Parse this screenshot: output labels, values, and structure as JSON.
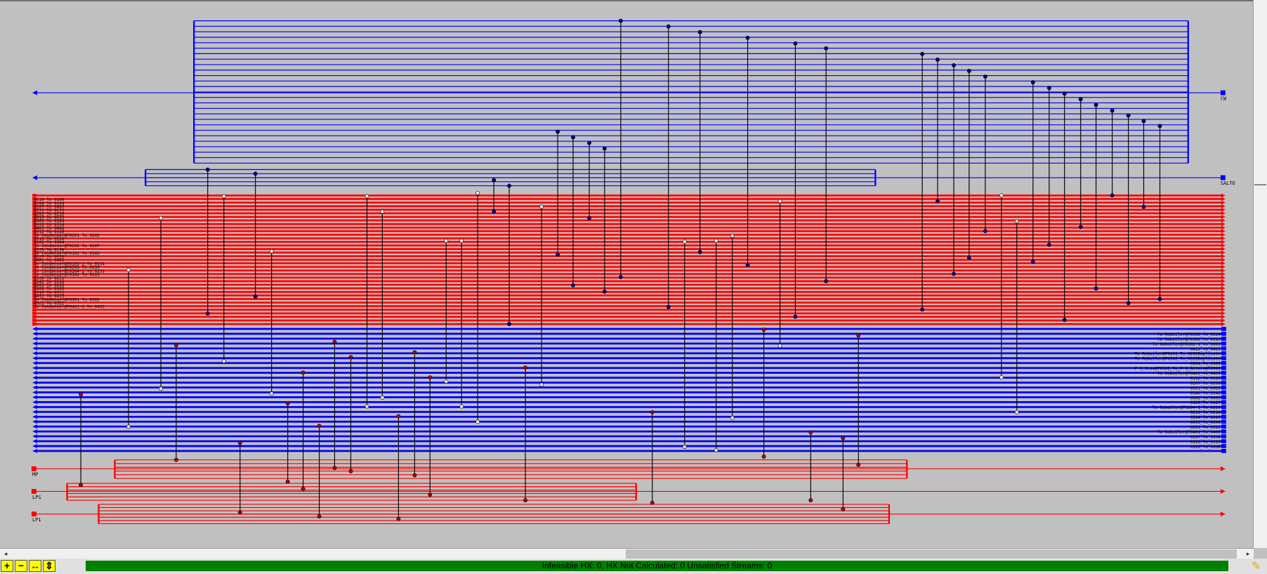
{
  "utilities": {
    "cw": {
      "name": "CW"
    },
    "salto": {
      "name": "SALTO"
    },
    "mp": {
      "name": "MP"
    },
    "lps": {
      "name": "LPS"
    },
    "lp1": {
      "name": "LP1"
    }
  },
  "hot_streams": [
    "0110_To_0100",
    "0108_To_0104",
    "0107_To_0400",
    "0131_To_0133",
    "0202_To_0210",
    "0313_To_0515",
    "0303_To_0304",
    "0333_To_0334",
    "0405_To_0408",
    "0312_To_0310",
    "To Condenser@T0201_To_0202",
    "0112_To_0510",
    "0101_To_0304",
    "To Condenser@T0202_To_0207",
    "0135_To_0136",
    "To Condenser@T0102_To_0103",
    "0227_To_0226",
    "0401_To_0402",
    "To Condenser@T0103-2_To_0134",
    "To Condenser@T0203_To_0233",
    "To Condenser@T0204-2_To_0231",
    "To Condenser@T0302_To_0331",
    "0220_To_0221",
    "0142_To_0143",
    "0201_To_0205",
    "0102_To_0103",
    "0310_To_0311",
    "0412_To_0413",
    "To Condenser@T0301_To_0302",
    "0321_To_0322",
    "To Condenser@T0401-2_To_0402"
  ],
  "cold_streams": [
    "To Reboiler@T0302_To_0324",
    "To Reboiler@T0102_To_0110",
    "To Reboiler@T0302-1_To_0303",
    "0419_To_0420",
    "To Reboiler@T0201_To_0202Duplicate",
    "To Reboiler@T0302_To_0333Duplicate",
    "0304_To_0305",
    "P-1_Scav@T0302_To_P-1_Return@T0302",
    "To Reboiler@T0402_To_0403",
    "0112_To_0113",
    "0207_To_0208",
    "0321_To_0322",
    "0140_To_0141",
    "0502_To_0503",
    "0126_To_0127",
    "To Reboiler@T0204-1_To_0229",
    "0215_To_0216",
    "0314_To_0315",
    "0505_To_0506",
    "0221_To_0222",
    "To Reboiler@T0401_To_0402",
    "0337_To_0338",
    "0115_To_0116",
    "0333_To_0336"
  ],
  "status": {
    "text": "Infeasible HX: 0, HX Not Calculated: 0     Unsatisfied Streams: 0"
  },
  "toolbar": {
    "zoom_in": "+",
    "zoom_out": "−",
    "fit_width": "↔",
    "fit_all": "⇕"
  },
  "colors": {
    "hot": "#ff0000",
    "cold": "#0000ff",
    "background": "#c0c0c0",
    "status_ok": "#008000"
  }
}
